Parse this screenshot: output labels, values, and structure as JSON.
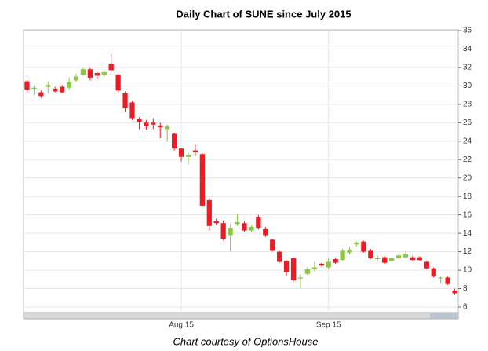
{
  "chart_data": {
    "type": "candlestick",
    "title": "Daily Chart of SUNE since July 2015",
    "caption": "Chart courtesy of OptionsHouse",
    "up_color": "#8dc63f",
    "down_color": "#ed1c24",
    "grid": true,
    "categories": [
      null,
      null,
      null,
      null,
      null,
      null,
      null,
      null,
      null,
      null,
      null,
      null,
      null,
      null,
      null,
      null,
      null,
      null,
      null,
      null,
      null,
      null,
      null,
      null,
      null,
      null,
      null,
      null,
      null,
      null,
      null,
      null,
      null,
      null,
      null,
      null,
      null,
      null,
      null,
      null,
      null,
      null,
      null,
      null,
      null,
      null,
      null,
      null,
      null,
      null,
      null,
      null,
      null,
      null,
      null,
      null,
      null,
      null,
      null,
      null,
      null,
      null
    ],
    "xticks": [
      {
        "value": 22,
        "label": "Aug 15"
      },
      {
        "value": 43,
        "label": "Sep 15"
      }
    ],
    "ylim": [
      6,
      36
    ],
    "yticks": [
      6,
      8,
      10,
      12,
      14,
      16,
      18,
      20,
      22,
      24,
      26,
      28,
      30,
      32,
      34,
      36
    ],
    "open": [
      30.5,
      29.7,
      29.3,
      29.9,
      29.7,
      29.9,
      29.8,
      30.6,
      31.2,
      31.8,
      31.4,
      31.2,
      32.4,
      31.2,
      29.2,
      28.2,
      26.4,
      26,
      26,
      25.7,
      25.3,
      24.8,
      23.2,
      22.3,
      23,
      22.6,
      17.6,
      15.3,
      15.1,
      13.8,
      15,
      15.1,
      14.3,
      15.8,
      14.5,
      13.3,
      12,
      11,
      11.3,
      9.1,
      9.6,
      10.1,
      10.7,
      10.3,
      11.2,
      11.1,
      11.9,
      12.8,
      13.1,
      12.1,
      11.2,
      11.4,
      11,
      11.3,
      11.4,
      11.4,
      11.4,
      10.9,
      10.2,
      9.1,
      9.2,
      7.8
    ],
    "high": [
      30.6,
      30,
      29.5,
      30.5,
      29.9,
      30.1,
      30.9,
      31.3,
      32,
      32,
      31.6,
      31.7,
      33.5,
      31.3,
      29.4,
      28.4,
      26.6,
      26.3,
      26.5,
      26,
      25.8,
      24.9,
      23.3,
      22.7,
      23.6,
      22.7,
      17.8,
      15.6,
      15.4,
      15,
      16.1,
      15.3,
      14.9,
      16,
      14.7,
      13.4,
      12.1,
      11.1,
      11.4,
      9.6,
      10.3,
      10.9,
      10.8,
      11.3,
      11.4,
      12.3,
      12.5,
      13.1,
      13.2,
      12.3,
      11.6,
      11.5,
      11.4,
      11.8,
      12,
      11.6,
      11.5,
      11,
      10.3,
      9.3,
      9.3,
      8
    ],
    "low": [
      29.3,
      29,
      28.7,
      29.2,
      29.3,
      29.2,
      29.6,
      30.4,
      31.1,
      30.6,
      30.8,
      31,
      31.5,
      29.3,
      27.2,
      26.3,
      25.3,
      25.2,
      25.3,
      24.3,
      24,
      23,
      21.8,
      21.5,
      22.4,
      16.8,
      14.3,
      14.9,
      13.2,
      12,
      14.8,
      14.1,
      14.1,
      14.4,
      13.6,
      12,
      10.8,
      9.4,
      8.8,
      8,
      9.4,
      9.9,
      10.4,
      10.1,
      10.7,
      11,
      11.7,
      12.6,
      11.9,
      11.2,
      11,
      10.7,
      10.9,
      11.2,
      11.3,
      11,
      11,
      10.1,
      9.2,
      8.6,
      8.4,
      7.3
    ],
    "close": [
      29.6,
      29.8,
      28.9,
      30.1,
      29.4,
      29.3,
      30.4,
      31,
      31.8,
      30.9,
      31.1,
      31.5,
      31.7,
      29.5,
      27.6,
      26.5,
      26.1,
      25.6,
      25.8,
      25.5,
      25.6,
      23.2,
      22.3,
      22.5,
      22.8,
      17,
      14.8,
      15.1,
      13.4,
      14.6,
      15.2,
      14.3,
      14.7,
      14.6,
      13.8,
      12.1,
      10.9,
      9.8,
      8.9,
      9.2,
      10.1,
      10.3,
      10.5,
      10.9,
      10.8,
      12.1,
      12.2,
      13,
      12,
      11.3,
      11.3,
      10.8,
      11.3,
      11.6,
      11.7,
      11.1,
      11.1,
      10.2,
      9.3,
      9.2,
      8.5,
      7.5
    ]
  }
}
